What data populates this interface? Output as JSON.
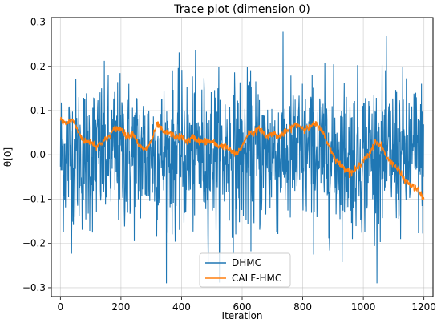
{
  "chart_data": {
    "type": "line",
    "title": "Trace plot (dimension 0)",
    "xlabel": "Iteration",
    "ylabel": "θ[0]",
    "xlim": [
      -30,
      1230
    ],
    "ylim": [
      -0.32,
      0.31
    ],
    "xticks": [
      0,
      200,
      400,
      600,
      800,
      1000,
      1200
    ],
    "yticks": [
      -0.3,
      -0.2,
      -0.1,
      0.0,
      0.1,
      0.2,
      0.3
    ],
    "xtick_labels": [
      "0",
      "200",
      "400",
      "600",
      "800",
      "1000",
      "1200"
    ],
    "ytick_labels": [
      "−0.3",
      "−0.2",
      "−0.1",
      "0.0",
      "0.1",
      "0.2",
      "0.3"
    ],
    "grid": true,
    "legend_position": "lower center",
    "series": [
      {
        "name": "DHMC",
        "color": "#1f77b4",
        "description_of_values": "Approximately 1200 iterations oscillating around 0.0 with amplitude roughly ±0.2",
        "n_points": 1200,
        "center": 0.0,
        "spread": 0.085,
        "min": -0.29,
        "max": 0.28
      },
      {
        "name": "CALF-HMC",
        "color": "#ff7f0e",
        "x": [
          0,
          20,
          40,
          60,
          80,
          100,
          120,
          140,
          160,
          180,
          200,
          220,
          240,
          260,
          280,
          300,
          320,
          340,
          360,
          380,
          400,
          420,
          440,
          460,
          480,
          500,
          520,
          540,
          560,
          580,
          600,
          620,
          640,
          660,
          680,
          700,
          720,
          740,
          760,
          780,
          800,
          820,
          840,
          860,
          880,
          900,
          920,
          940,
          960,
          980,
          1000,
          1020,
          1040,
          1060,
          1080,
          1100,
          1120,
          1140,
          1160,
          1180,
          1200
        ],
        "y": [
          0.08,
          0.07,
          0.08,
          0.05,
          0.03,
          0.03,
          0.02,
          0.03,
          0.04,
          0.06,
          0.06,
          0.04,
          0.05,
          0.02,
          0.01,
          0.03,
          0.07,
          0.05,
          0.05,
          0.04,
          0.04,
          0.03,
          0.04,
          0.03,
          0.03,
          0.03,
          0.02,
          0.02,
          0.01,
          0.0,
          0.02,
          0.05,
          0.05,
          0.06,
          0.04,
          0.05,
          0.04,
          0.05,
          0.06,
          0.07,
          0.06,
          0.06,
          0.07,
          0.06,
          0.03,
          0.0,
          -0.02,
          -0.03,
          -0.04,
          -0.03,
          -0.01,
          0.0,
          0.03,
          0.02,
          -0.01,
          -0.02,
          -0.04,
          -0.06,
          -0.07,
          -0.08,
          -0.1
        ]
      }
    ]
  }
}
